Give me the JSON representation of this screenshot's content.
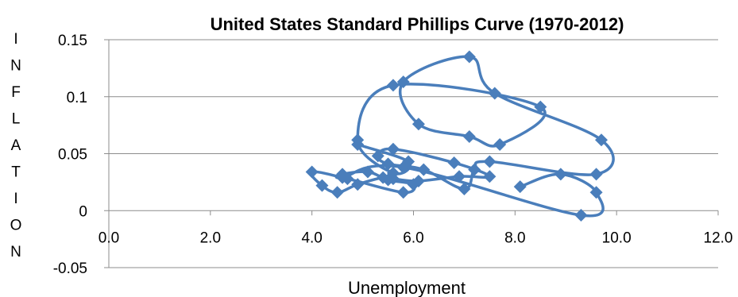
{
  "chart_data": {
    "type": "scatter",
    "title": "United States Standard Phillips Curve (1970-2012)",
    "xlabel": "Unemployment",
    "ylabel_letters": [
      "I",
      "N",
      "F",
      "L",
      "A",
      "T",
      "I",
      "O",
      "N"
    ],
    "xlim": [
      0,
      12
    ],
    "ylim": [
      -0.05,
      0.15
    ],
    "x_ticks": [
      "0.0",
      "2.0",
      "4.0",
      "6.0",
      "8.0",
      "10.0",
      "12.0"
    ],
    "y_ticks": [
      "-0.05",
      "0",
      "0.05",
      "0.1",
      "0.15"
    ],
    "grid": "horizontal",
    "legend": "none",
    "series": [
      {
        "color": "#4a7ebb",
        "marker": "diamond",
        "line": "smoothed",
        "points": [
          {
            "x": 4.9,
            "y": 0.058
          },
          {
            "x": 5.9,
            "y": 0.043
          },
          {
            "x": 5.6,
            "y": 0.033
          },
          {
            "x": 4.9,
            "y": 0.062
          },
          {
            "x": 5.6,
            "y": 0.11
          },
          {
            "x": 8.5,
            "y": 0.091
          },
          {
            "x": 7.7,
            "y": 0.058
          },
          {
            "x": 7.1,
            "y": 0.065
          },
          {
            "x": 6.1,
            "y": 0.076
          },
          {
            "x": 5.8,
            "y": 0.113
          },
          {
            "x": 7.1,
            "y": 0.135
          },
          {
            "x": 7.6,
            "y": 0.103
          },
          {
            "x": 9.7,
            "y": 0.062
          },
          {
            "x": 9.6,
            "y": 0.032
          },
          {
            "x": 7.5,
            "y": 0.043
          },
          {
            "x": 7.2,
            "y": 0.036
          },
          {
            "x": 7.0,
            "y": 0.019
          },
          {
            "x": 6.2,
            "y": 0.036
          },
          {
            "x": 5.5,
            "y": 0.041
          },
          {
            "x": 5.3,
            "y": 0.048
          },
          {
            "x": 5.6,
            "y": 0.054
          },
          {
            "x": 6.8,
            "y": 0.042
          },
          {
            "x": 7.5,
            "y": 0.03
          },
          {
            "x": 6.9,
            "y": 0.03
          },
          {
            "x": 6.1,
            "y": 0.026
          },
          {
            "x": 5.6,
            "y": 0.028
          },
          {
            "x": 5.4,
            "y": 0.029
          },
          {
            "x": 4.9,
            "y": 0.023
          },
          {
            "x": 4.5,
            "y": 0.016
          },
          {
            "x": 4.2,
            "y": 0.022
          },
          {
            "x": 4.0,
            "y": 0.034
          },
          {
            "x": 4.7,
            "y": 0.028
          },
          {
            "x": 5.8,
            "y": 0.016
          },
          {
            "x": 6.0,
            "y": 0.023
          },
          {
            "x": 5.5,
            "y": 0.027
          },
          {
            "x": 5.1,
            "y": 0.034
          },
          {
            "x": 4.6,
            "y": 0.032
          },
          {
            "x": 4.6,
            "y": 0.029
          },
          {
            "x": 5.8,
            "y": 0.038
          },
          {
            "x": 9.3,
            "y": -0.004
          },
          {
            "x": 9.6,
            "y": 0.016
          },
          {
            "x": 8.9,
            "y": 0.032
          },
          {
            "x": 8.1,
            "y": 0.021
          }
        ]
      }
    ]
  }
}
